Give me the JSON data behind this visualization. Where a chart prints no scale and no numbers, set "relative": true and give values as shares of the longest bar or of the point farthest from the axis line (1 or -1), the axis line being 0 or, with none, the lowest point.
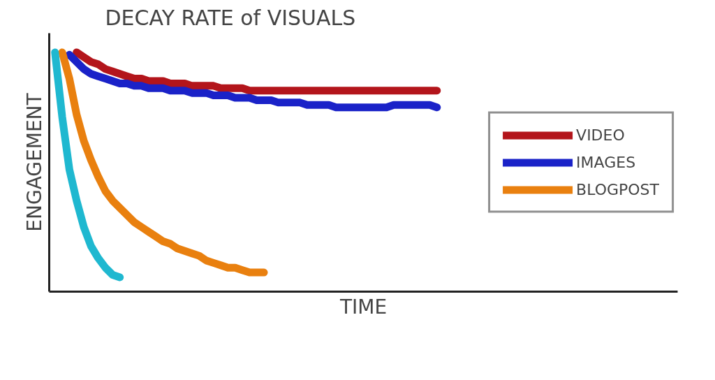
{
  "chart_data": {
    "type": "line",
    "title": "DECAY RATE of VISUALS",
    "xlabel": "TIME",
    "ylabel": "ENGAGEMENT",
    "relative": true,
    "legend": "right",
    "line_style": "solid",
    "categories": [
      null,
      null,
      null,
      null,
      null,
      null,
      null,
      null,
      null,
      null,
      null,
      null,
      null,
      null,
      null,
      null,
      null,
      null,
      null,
      null,
      null,
      null,
      null,
      null,
      null,
      null,
      null,
      null,
      null,
      null,
      null,
      null,
      null,
      null,
      null,
      null,
      null,
      null,
      null,
      null,
      null,
      null,
      null,
      null,
      null,
      null,
      null,
      null,
      null,
      null,
      null,
      null,
      null,
      null
    ],
    "series": [
      {
        "name": "VIDEO",
        "color": "#b3151b",
        "values": [
          null,
          null,
          null,
          1.0,
          0.98,
          0.96,
          0.95,
          0.93,
          0.92,
          0.91,
          0.9,
          0.89,
          0.89,
          0.88,
          0.88,
          0.88,
          0.87,
          0.87,
          0.87,
          0.86,
          0.86,
          0.86,
          0.86,
          0.85,
          0.85,
          0.85,
          0.85,
          0.84,
          0.84,
          0.84,
          0.84,
          0.84,
          0.84,
          0.84,
          0.84,
          0.84,
          0.84,
          0.84,
          0.84,
          0.84,
          0.84,
          0.84,
          0.84,
          0.84,
          0.84,
          0.84,
          0.84,
          0.84,
          0.84,
          0.84,
          0.84,
          0.84,
          0.84,
          0.84
        ]
      },
      {
        "name": "IMAGES",
        "color": "#1a22c8",
        "values": [
          null,
          null,
          0.99,
          0.96,
          0.93,
          0.91,
          0.9,
          0.89,
          0.88,
          0.87,
          0.87,
          0.86,
          0.86,
          0.85,
          0.85,
          0.85,
          0.84,
          0.84,
          0.84,
          0.83,
          0.83,
          0.83,
          0.82,
          0.82,
          0.82,
          0.81,
          0.81,
          0.81,
          0.8,
          0.8,
          0.8,
          0.79,
          0.79,
          0.79,
          0.79,
          0.78,
          0.78,
          0.78,
          0.78,
          0.77,
          0.77,
          0.77,
          0.77,
          0.77,
          0.77,
          0.77,
          0.77,
          0.78,
          0.78,
          0.78,
          0.78,
          0.78,
          0.78,
          0.77
        ]
      },
      {
        "name": "BLOGPOST",
        "color": "#e9800f",
        "values": [
          null,
          1.0,
          0.89,
          0.74,
          0.63,
          0.55,
          0.48,
          0.42,
          0.38,
          0.35,
          0.32,
          0.29,
          0.27,
          0.25,
          0.23,
          0.21,
          0.2,
          0.18,
          0.17,
          0.16,
          0.15,
          0.13,
          0.12,
          0.11,
          0.1,
          0.1,
          0.09,
          0.08,
          0.08,
          0.08,
          null,
          null,
          null,
          null,
          null,
          null,
          null,
          null,
          null,
          null,
          null,
          null,
          null,
          null,
          null,
          null,
          null,
          null,
          null,
          null,
          null,
          null,
          null,
          null
        ]
      },
      {
        "color": "#1fb8d0",
        "values": [
          1.0,
          0.73,
          0.51,
          0.38,
          0.27,
          0.19,
          0.14,
          0.1,
          0.07,
          0.06,
          null,
          null,
          null,
          null,
          null,
          null,
          null,
          null,
          null,
          null,
          null,
          null,
          null,
          null,
          null,
          null,
          null,
          null,
          null,
          null,
          null,
          null,
          null,
          null,
          null,
          null,
          null,
          null,
          null,
          null,
          null,
          null,
          null,
          null,
          null,
          null,
          null,
          null,
          null,
          null,
          null,
          null,
          null,
          null
        ]
      }
    ]
  }
}
